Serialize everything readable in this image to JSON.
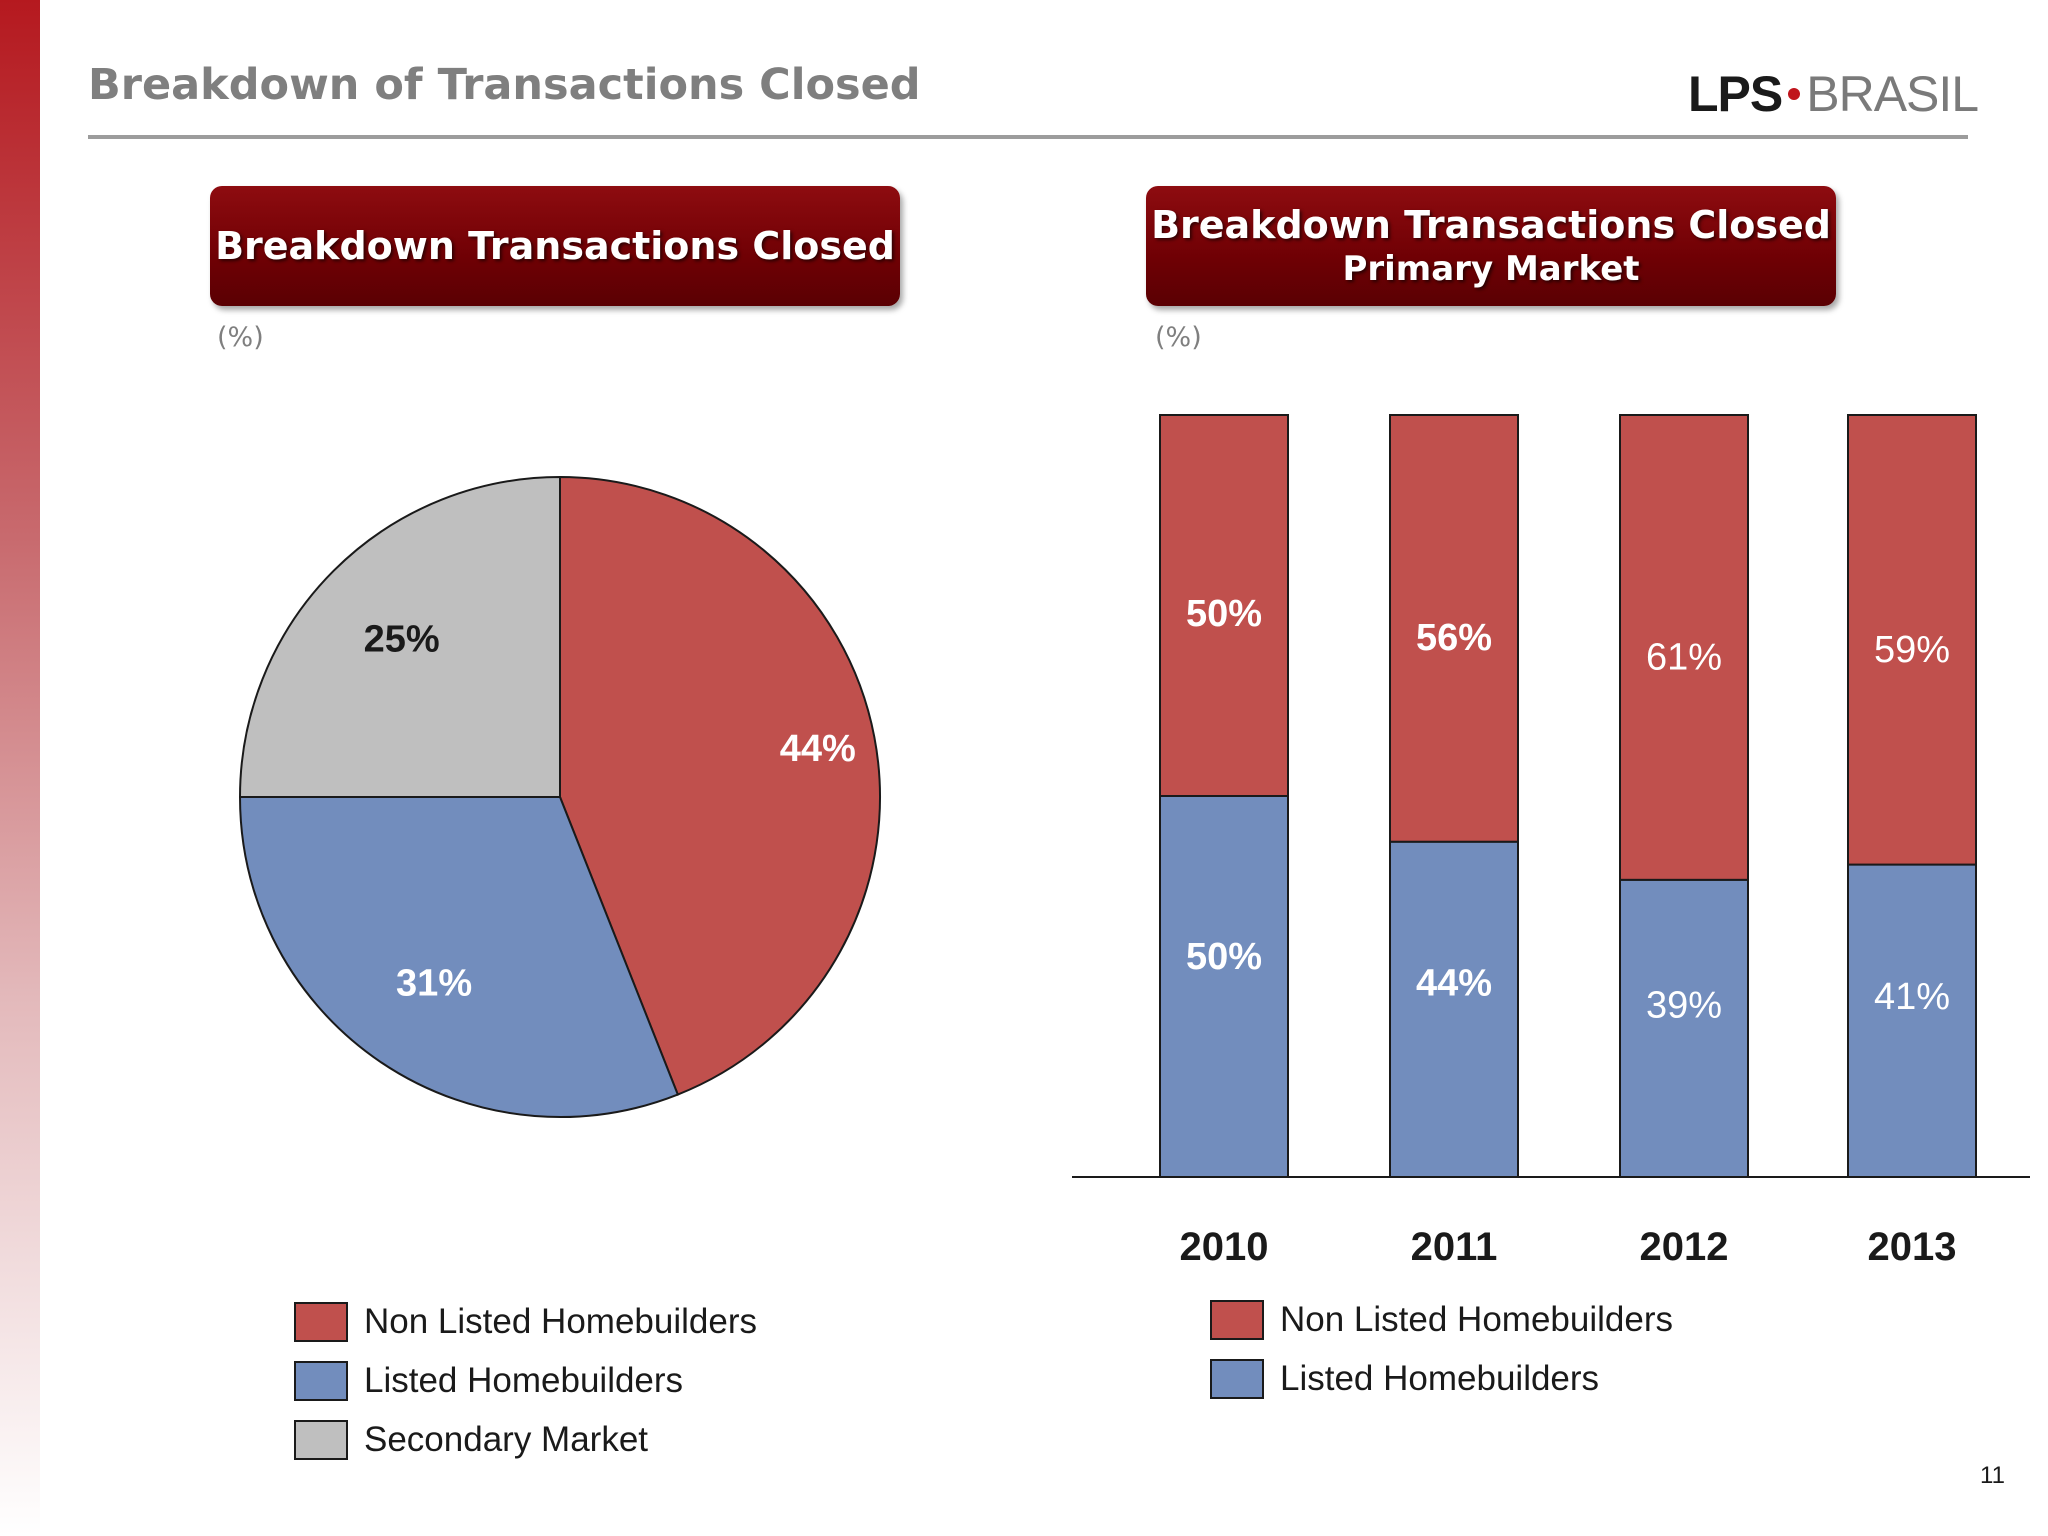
{
  "slide": {
    "title": "Breakdown of Transactions Closed",
    "logo": {
      "part1": "LPS",
      "part2": "BRASIL"
    },
    "page_number": "11",
    "accent_color": "#7a0006"
  },
  "left_panel": {
    "header": "Breakdown Transactions Closed",
    "unit": "(%)",
    "legend": [
      {
        "label": "Non Listed Homebuilders",
        "color": "#c0504d"
      },
      {
        "label": "Listed Homebuilders",
        "color": "#728dbd"
      },
      {
        "label": "Secondary Market",
        "color": "#bfbfbf"
      }
    ]
  },
  "right_panel": {
    "header_line1": "Breakdown Transactions Closed",
    "header_line2": "Primary Market",
    "unit": "(%)",
    "legend": [
      {
        "label": "Non Listed Homebuilders",
        "color": "#c0504d"
      },
      {
        "label": "Listed Homebuilders",
        "color": "#728dbd"
      }
    ]
  },
  "chart_data": [
    {
      "type": "pie",
      "title": "Breakdown Transactions Closed",
      "slices": [
        {
          "name": "Non Listed Homebuilders",
          "value": 44,
          "label": "44%",
          "color": "#c0504d"
        },
        {
          "name": "Listed Homebuilders",
          "value": 31,
          "label": "31%",
          "color": "#728dbd"
        },
        {
          "name": "Secondary Market",
          "value": 25,
          "label": "25%",
          "color": "#bfbfbf"
        }
      ]
    },
    {
      "type": "bar",
      "stacked": true,
      "title": "Breakdown Transactions Closed Primary Market",
      "categories": [
        "2010",
        "2011",
        "2012",
        "2013"
      ],
      "series": [
        {
          "name": "Listed Homebuilders",
          "values": [
            50,
            44,
            39,
            41
          ],
          "labels": [
            "50%",
            "44%",
            "39%",
            "41%"
          ],
          "color": "#728dbd"
        },
        {
          "name": "Non Listed Homebuilders",
          "values": [
            50,
            56,
            61,
            59
          ],
          "labels": [
            "50%",
            "56%",
            "61%",
            "59%"
          ],
          "color": "#c0504d"
        }
      ],
      "ylim": [
        0,
        100
      ],
      "grid": false,
      "legend_position": "bottom"
    }
  ]
}
